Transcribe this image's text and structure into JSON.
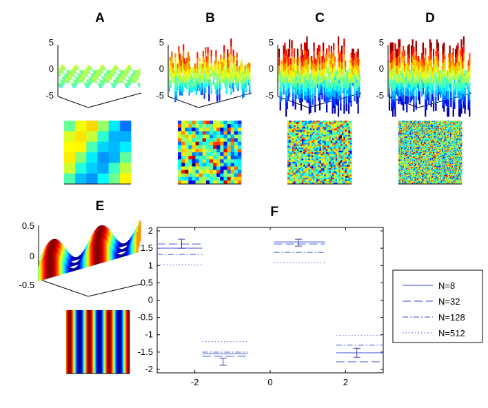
{
  "panels": {
    "A": {
      "label": "A",
      "noise_amp": 0.9,
      "grid": 6
    },
    "B": {
      "label": "B",
      "noise_amp": 2.4,
      "grid": 18
    },
    "C": {
      "label": "C",
      "noise_amp": 3.8,
      "grid": 40
    },
    "D": {
      "label": "D",
      "noise_amp": 4.6,
      "grid": 70
    },
    "E": {
      "label": "E"
    },
    "F": {
      "label": "F"
    }
  },
  "surface_axis": {
    "ticks": [
      "5",
      "0",
      "-5"
    ]
  },
  "wave_axis": {
    "ticks": [
      "0.5",
      "0",
      "-0.5"
    ]
  },
  "colors": {
    "line": "#5a6adc",
    "bar": "#3d3db0"
  },
  "chart_data": {
    "type": "line",
    "title": "F",
    "xlim": [
      -3,
      3
    ],
    "ylim": [
      -2.1,
      2.1
    ],
    "x_ticks": [
      "-2",
      "0",
      "2"
    ],
    "x_tick_values": [
      -2,
      0,
      2
    ],
    "y_ticks": [
      "2",
      "1.5",
      "1",
      "0.5",
      "0",
      "-0.5",
      "-1",
      "-1.5",
      "-2"
    ],
    "y_tick_values": [
      2,
      1.5,
      1,
      0.5,
      0,
      -0.5,
      -1,
      -1.5,
      -2
    ],
    "groups": [
      {
        "x_range": [
          -3,
          -1.8
        ],
        "levels": {
          "N=8": 1.5,
          "N=32": 1.62,
          "N=128": 1.32,
          "N=512": 1.02
        },
        "errorbar": {
          "x": -2.35,
          "y": 1.63,
          "err": 0.13
        }
      },
      {
        "x_range": [
          -1.8,
          -0.6
        ],
        "levels": {
          "N=8": -1.55,
          "N=32": -1.62,
          "N=128": -1.5,
          "N=512": -1.2
        },
        "errorbar": {
          "x": -1.25,
          "y": -1.78,
          "err": 0.1
        }
      },
      {
        "x_range": [
          0.1,
          1.45
        ],
        "levels": {
          "N=8": 1.68,
          "N=32": 1.62,
          "N=128": 1.38,
          "N=512": 1.08
        },
        "errorbar": {
          "x": 0.75,
          "y": 1.66,
          "err": 0.1
        }
      },
      {
        "x_range": [
          1.75,
          3
        ],
        "levels": {
          "N=8": -1.52,
          "N=32": -1.78,
          "N=128": -1.3,
          "N=512": -1.02
        },
        "errorbar": {
          "x": 2.3,
          "y": -1.52,
          "err": 0.13
        }
      }
    ],
    "series": [
      {
        "name": "N=8",
        "dash": ""
      },
      {
        "name": "N=32",
        "dash": "12 5"
      },
      {
        "name": "N=128",
        "dash": "8 3 2 3"
      },
      {
        "name": "N=512",
        "dash": "1.5 3"
      }
    ],
    "legend": "right"
  }
}
